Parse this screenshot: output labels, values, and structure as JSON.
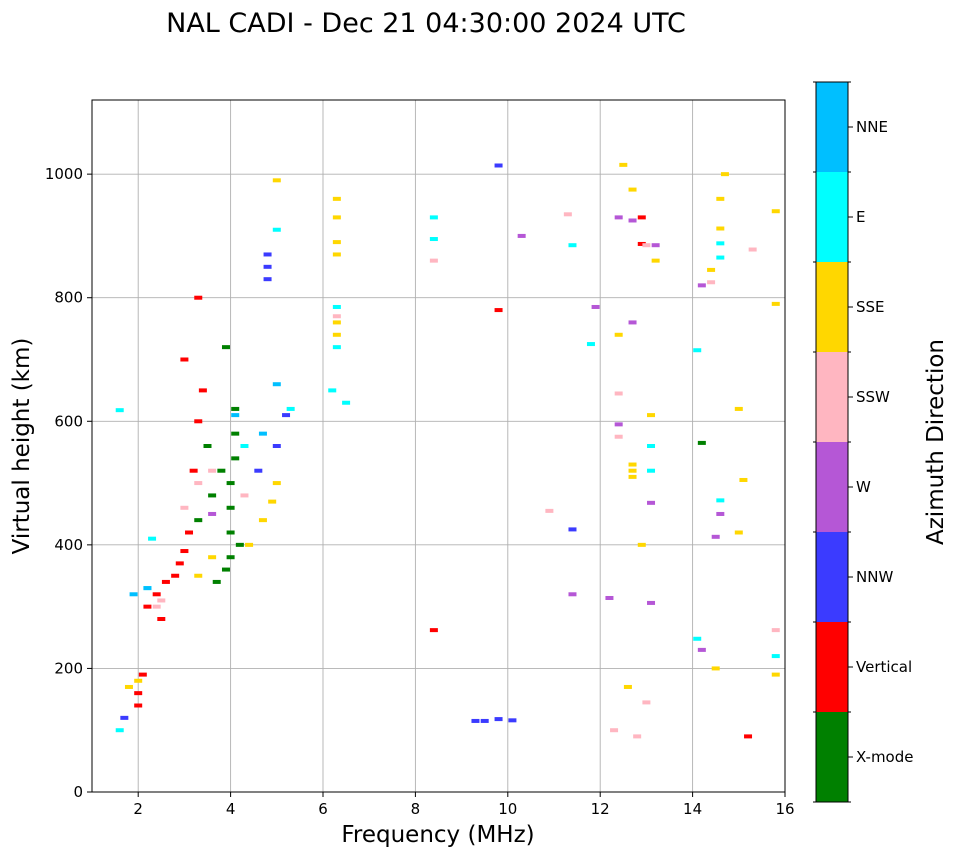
{
  "chart_data": {
    "type": "scatter",
    "title": "NAL CADI - Dec 21 04:30:00 2024 UTC",
    "xlabel": "Frequency (MHz)",
    "ylabel": "Virtual height (km)",
    "xlim": [
      1,
      16
    ],
    "ylim": [
      0,
      1120
    ],
    "xticks": [
      "2",
      "4",
      "6",
      "8",
      "10",
      "12",
      "14",
      "16"
    ],
    "yticks": [
      "0",
      "200",
      "400",
      "600",
      "800",
      "1000"
    ],
    "grid": true,
    "colorbar_label": "Azimuth Direction",
    "colorbar_categories": [
      {
        "name": "X-mode",
        "color": "#008000"
      },
      {
        "name": "Vertical",
        "color": "#ff0000"
      },
      {
        "name": "NNW",
        "color": "#3b3bff"
      },
      {
        "name": "W",
        "color": "#b557d6"
      },
      {
        "name": "SSW",
        "color": "#ffb6c1"
      },
      {
        "name": "SSE",
        "color": "#ffd700"
      },
      {
        "name": "E",
        "color": "#00ffff"
      },
      {
        "name": "NNE",
        "color": "#00bfff"
      }
    ],
    "series": [
      {
        "name": "X-mode",
        "points": [
          [
            3.7,
            340
          ],
          [
            3.9,
            360
          ],
          [
            4.0,
            380
          ],
          [
            4.0,
            420
          ],
          [
            4.0,
            460
          ],
          [
            4.0,
            500
          ],
          [
            4.1,
            540
          ],
          [
            4.1,
            580
          ],
          [
            4.1,
            620
          ],
          [
            3.9,
            720
          ],
          [
            3.5,
            560
          ],
          [
            3.8,
            520
          ],
          [
            14.2,
            565
          ],
          [
            3.3,
            440
          ],
          [
            4.2,
            400
          ],
          [
            3.6,
            480
          ]
        ]
      },
      {
        "name": "Vertical",
        "points": [
          [
            2.0,
            160
          ],
          [
            2.1,
            190
          ],
          [
            2.2,
            300
          ],
          [
            2.4,
            320
          ],
          [
            2.6,
            340
          ],
          [
            2.8,
            350
          ],
          [
            2.9,
            370
          ],
          [
            3.0,
            390
          ],
          [
            3.1,
            420
          ],
          [
            3.2,
            520
          ],
          [
            3.3,
            600
          ],
          [
            3.0,
            700
          ],
          [
            3.3,
            800
          ],
          [
            8.4,
            262
          ],
          [
            9.8,
            780
          ],
          [
            12.9,
            930
          ],
          [
            12.9,
            887
          ],
          [
            15.2,
            90
          ],
          [
            2.0,
            140
          ],
          [
            3.4,
            650
          ],
          [
            2.5,
            280
          ]
        ]
      },
      {
        "name": "NNW",
        "points": [
          [
            4.8,
            830
          ],
          [
            4.8,
            850
          ],
          [
            4.8,
            870
          ],
          [
            9.5,
            115
          ],
          [
            9.3,
            115
          ],
          [
            9.8,
            118
          ],
          [
            10.1,
            116
          ],
          [
            9.8,
            1014
          ],
          [
            11.4,
            425
          ],
          [
            5.2,
            610
          ],
          [
            5.0,
            560
          ],
          [
            1.7,
            120
          ],
          [
            4.6,
            520
          ]
        ]
      },
      {
        "name": "W",
        "points": [
          [
            12.4,
            930
          ],
          [
            12.7,
            925
          ],
          [
            12.4,
            595
          ],
          [
            12.7,
            760
          ],
          [
            13.1,
            468
          ],
          [
            13.1,
            306
          ],
          [
            12.2,
            314
          ],
          [
            14.2,
            820
          ],
          [
            14.6,
            450
          ],
          [
            14.5,
            413
          ],
          [
            13.2,
            885
          ],
          [
            10.3,
            900
          ],
          [
            11.4,
            320
          ],
          [
            14.2,
            230
          ],
          [
            11.9,
            785
          ],
          [
            3.6,
            450
          ]
        ]
      },
      {
        "name": "SSW",
        "points": [
          [
            2.4,
            300
          ],
          [
            2.5,
            310
          ],
          [
            3.3,
            500
          ],
          [
            3.6,
            520
          ],
          [
            4.3,
            480
          ],
          [
            6.3,
            770
          ],
          [
            12.4,
            645
          ],
          [
            12.4,
            575
          ],
          [
            13.0,
            885
          ],
          [
            14.4,
            825
          ],
          [
            15.3,
            878
          ],
          [
            15.8,
            262
          ],
          [
            11.3,
            935
          ],
          [
            10.9,
            455
          ],
          [
            12.8,
            90
          ],
          [
            13.0,
            145
          ],
          [
            12.3,
            100
          ],
          [
            8.4,
            860
          ],
          [
            3.0,
            460
          ]
        ]
      },
      {
        "name": "SSE",
        "points": [
          [
            1.8,
            170
          ],
          [
            2.0,
            180
          ],
          [
            3.3,
            350
          ],
          [
            3.6,
            380
          ],
          [
            4.4,
            400
          ],
          [
            4.7,
            440
          ],
          [
            4.9,
            470
          ],
          [
            5.0,
            500
          ],
          [
            6.3,
            870
          ],
          [
            6.3,
            890
          ],
          [
            6.3,
            930
          ],
          [
            6.3,
            960
          ],
          [
            6.3,
            740
          ],
          [
            6.3,
            760
          ],
          [
            12.7,
            510
          ],
          [
            12.7,
            520
          ],
          [
            12.7,
            530
          ],
          [
            13.1,
            610
          ],
          [
            14.5,
            200
          ],
          [
            14.7,
            1000
          ],
          [
            14.6,
            960
          ],
          [
            14.6,
            912
          ],
          [
            15.0,
            620
          ],
          [
            15.0,
            420
          ],
          [
            15.1,
            505
          ],
          [
            15.8,
            940
          ],
          [
            15.8,
            790
          ],
          [
            15.8,
            190
          ],
          [
            12.5,
            1015
          ],
          [
            12.7,
            975
          ],
          [
            13.2,
            860
          ],
          [
            12.9,
            400
          ],
          [
            12.4,
            740
          ],
          [
            5.0,
            990
          ],
          [
            12.6,
            170
          ],
          [
            14.4,
            845
          ]
        ]
      },
      {
        "name": "E",
        "points": [
          [
            1.6,
            100
          ],
          [
            2.2,
            330
          ],
          [
            2.3,
            410
          ],
          [
            4.3,
            560
          ],
          [
            5.3,
            620
          ],
          [
            6.2,
            650
          ],
          [
            6.5,
            630
          ],
          [
            6.3,
            720
          ],
          [
            6.3,
            785
          ],
          [
            8.4,
            930
          ],
          [
            8.4,
            895
          ],
          [
            11.4,
            885
          ],
          [
            13.1,
            560
          ],
          [
            13.1,
            520
          ],
          [
            14.1,
            715
          ],
          [
            14.6,
            472
          ],
          [
            14.6,
            865
          ],
          [
            14.6,
            888
          ],
          [
            15.8,
            220
          ],
          [
            14.1,
            248
          ],
          [
            11.8,
            725
          ],
          [
            1.6,
            618
          ],
          [
            5.0,
            910
          ]
        ]
      },
      {
        "name": "NNE",
        "points": [
          [
            4.1,
            610
          ],
          [
            2.2,
            330
          ],
          [
            5.0,
            660
          ],
          [
            1.9,
            320
          ],
          [
            4.7,
            580
          ]
        ]
      }
    ]
  }
}
